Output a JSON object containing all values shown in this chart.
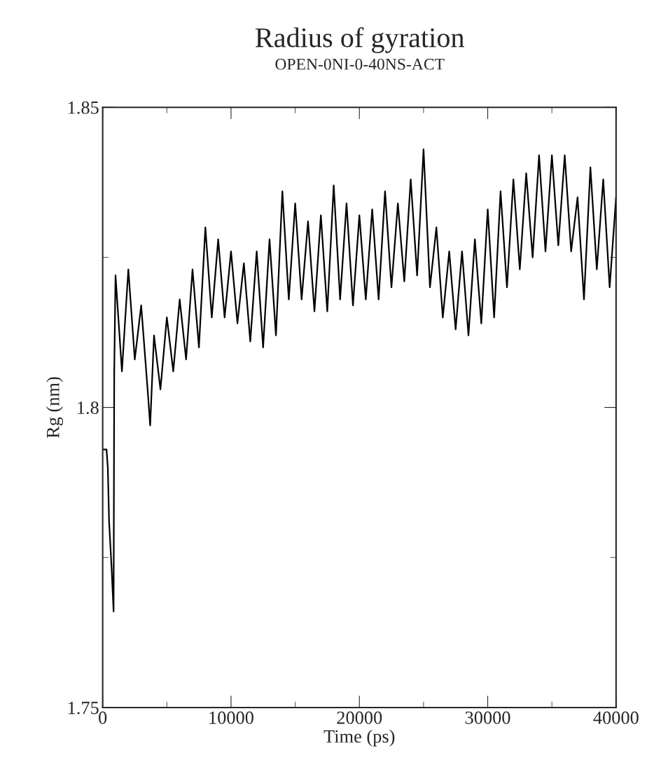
{
  "chart_data": {
    "type": "line",
    "title": "Radius of gyration",
    "subtitle": "OPEN-0NI-0-40NS-ACT",
    "xlabel": "Time (ps)",
    "ylabel": "Rg (nm)",
    "xlim": [
      0,
      40000
    ],
    "xticks": [
      0,
      10000,
      20000,
      30000,
      40000
    ],
    "ylim": [
      1.75,
      1.85
    ],
    "yticks": [
      1.75,
      1.8,
      1.85
    ],
    "series": [
      {
        "color": "#000000",
        "x": [
          0,
          300,
          400,
          500,
          700,
          850,
          900,
          1000,
          1500,
          2000,
          2500,
          3000,
          3500,
          3700,
          4000,
          4500,
          5000,
          5500,
          6000,
          6500,
          7000,
          7500,
          8000,
          8500,
          9000,
          9500,
          10000,
          10500,
          11000,
          11500,
          12000,
          12500,
          13000,
          13500,
          14000,
          14500,
          15000,
          15500,
          16000,
          16500,
          17000,
          17500,
          18000,
          18500,
          19000,
          19500,
          20000,
          20500,
          21000,
          21500,
          22000,
          22500,
          23000,
          23500,
          24000,
          24500,
          25000,
          25500,
          26000,
          26500,
          27000,
          27500,
          28000,
          28500,
          29000,
          29500,
          30000,
          30500,
          31000,
          31500,
          32000,
          32500,
          33000,
          33500,
          34000,
          34500,
          35000,
          35500,
          36000,
          36500,
          37000,
          37500,
          38000,
          38500,
          39000,
          39500,
          40000
        ],
        "values": [
          1.793,
          1.793,
          1.79,
          1.781,
          1.773,
          1.766,
          1.806,
          1.822,
          1.806,
          1.823,
          1.808,
          1.817,
          1.803,
          1.797,
          1.812,
          1.803,
          1.815,
          1.806,
          1.818,
          1.808,
          1.823,
          1.81,
          1.83,
          1.815,
          1.828,
          1.815,
          1.826,
          1.814,
          1.824,
          1.811,
          1.826,
          1.81,
          1.828,
          1.812,
          1.836,
          1.818,
          1.834,
          1.818,
          1.831,
          1.816,
          1.832,
          1.816,
          1.837,
          1.818,
          1.834,
          1.817,
          1.832,
          1.818,
          1.833,
          1.818,
          1.836,
          1.82,
          1.834,
          1.821,
          1.838,
          1.822,
          1.843,
          1.82,
          1.83,
          1.815,
          1.826,
          1.813,
          1.826,
          1.812,
          1.828,
          1.814,
          1.833,
          1.815,
          1.836,
          1.82,
          1.838,
          1.823,
          1.839,
          1.825,
          1.842,
          1.826,
          1.842,
          1.827,
          1.842,
          1.826,
          1.835,
          1.818,
          1.84,
          1.823,
          1.838,
          1.82,
          1.835
        ]
      }
    ]
  }
}
